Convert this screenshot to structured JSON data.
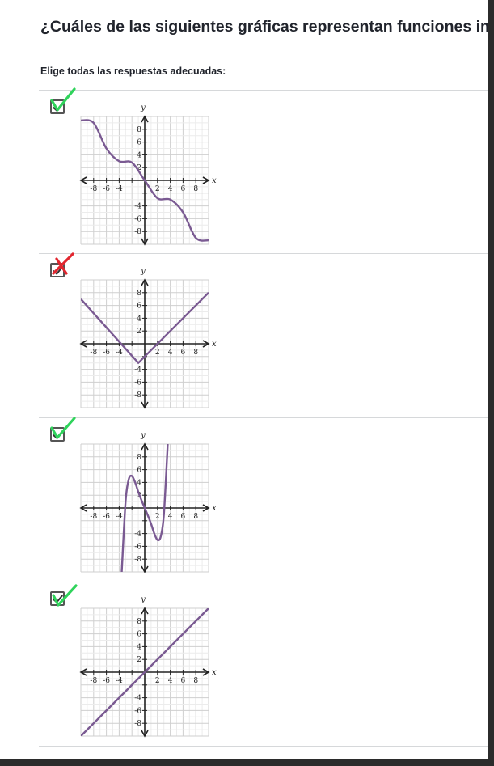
{
  "question": "¿Cuáles de las siguientes gráficas representan funciones impares?",
  "instruction": "Elige todas las respuestas adecuadas:",
  "axis_labels": {
    "x": "x",
    "y": "y"
  },
  "colors": {
    "curve": "#7a5a92",
    "correct_mark": "#2fd35b",
    "wrong_mark": "#e2262f"
  },
  "options": [
    {
      "checked": true,
      "mark": "green-check-icon",
      "ticks_x": [
        "-8",
        "-6",
        "-4",
        "2",
        "4",
        "6",
        "8"
      ],
      "ticks_y": [
        "8",
        "6",
        "4",
        "2",
        "-4",
        "-6",
        "-8"
      ]
    },
    {
      "checked": true,
      "mark": "red-x-icon",
      "ticks_x": [
        "-8",
        "-6",
        "-4",
        "2",
        "4",
        "6",
        "8"
      ],
      "ticks_y": [
        "8",
        "6",
        "4",
        "2",
        "-4",
        "-6",
        "-8"
      ]
    },
    {
      "checked": true,
      "mark": "green-check-icon",
      "ticks_x": [
        "-8",
        "-6",
        "-4",
        "2",
        "4",
        "6",
        "8"
      ],
      "ticks_y": [
        "8",
        "6",
        "4",
        "2",
        "-4",
        "-6",
        "-8"
      ]
    },
    {
      "checked": true,
      "mark": "green-check-icon",
      "ticks_x": [
        "-8",
        "-6",
        "-4",
        "2",
        "4",
        "6",
        "8"
      ],
      "ticks_y": [
        "8",
        "6",
        "4",
        "2",
        "-4",
        "-6",
        "-8"
      ]
    }
  ],
  "chart_data": [
    {
      "type": "line",
      "xlabel": "x",
      "ylabel": "y",
      "xlim": [
        -10,
        10
      ],
      "ylim": [
        -10,
        10
      ],
      "grid": true,
      "series": [
        {
          "x": [
            -10,
            -8,
            -6,
            -4,
            -2,
            0,
            2,
            4,
            6,
            8,
            10
          ],
          "y": [
            9.4,
            9,
            5,
            3,
            2.8,
            0,
            -2.8,
            -3,
            -5,
            -9,
            -9.4
          ]
        }
      ]
    },
    {
      "type": "line",
      "xlabel": "x",
      "ylabel": "y",
      "xlim": [
        -10,
        10
      ],
      "ylim": [
        -10,
        10
      ],
      "grid": true,
      "series": [
        {
          "x": [
            -10,
            -1,
            10
          ],
          "y": [
            7,
            -3,
            8
          ]
        }
      ]
    },
    {
      "type": "line",
      "xlabel": "x",
      "ylabel": "y",
      "xlim": [
        -10,
        10
      ],
      "ylim": [
        -10,
        10
      ],
      "grid": true,
      "series": [
        {
          "x": [
            -3.6,
            -3,
            -2.5,
            -2,
            -1.5,
            -1,
            -0.5,
            0,
            0.5,
            1,
            1.5,
            2,
            2.5,
            3,
            3.6
          ],
          "y": [
            -10,
            1,
            4.5,
            5,
            4,
            2.5,
            1.2,
            0,
            -1.2,
            -2.5,
            -4,
            -5,
            -4.5,
            -1,
            10
          ]
        }
      ]
    },
    {
      "type": "line",
      "xlabel": "x",
      "ylabel": "y",
      "xlim": [
        -10,
        10
      ],
      "ylim": [
        -10,
        10
      ],
      "grid": true,
      "series": [
        {
          "x": [
            -10,
            10
          ],
          "y": [
            -10,
            10
          ]
        }
      ]
    }
  ]
}
